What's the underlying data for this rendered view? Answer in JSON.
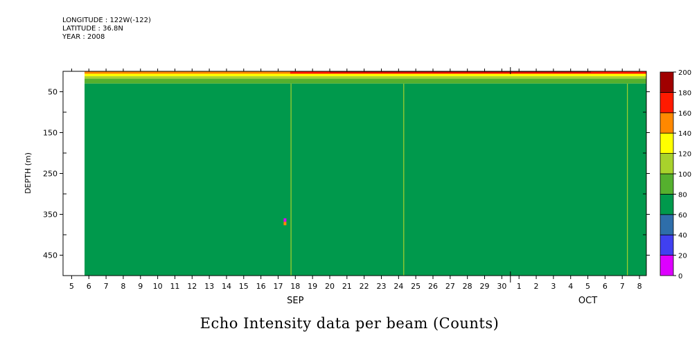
{
  "meta": {
    "longitude": "LONGITUDE : 122W(-122)",
    "latitude": "LATITUDE : 36.8N",
    "year": "YEAR : 2008"
  },
  "chart_data": {
    "type": "heatmap",
    "title": "Echo Intensity data per beam (Counts)",
    "ylabel": "DEPTH (m)",
    "xlabel": "",
    "y_axis": {
      "range": [
        500,
        0
      ],
      "inverted": true,
      "tick_labels": [
        "50",
        "150",
        "250",
        "350",
        "450"
      ],
      "tick_values": [
        50,
        150,
        250,
        350,
        450
      ],
      "minor_ticks": [
        100,
        200,
        300,
        400
      ]
    },
    "x_axis": {
      "day_labels": [
        "5",
        "6",
        "7",
        "8",
        "9",
        "10",
        "11",
        "12",
        "13",
        "14",
        "15",
        "16",
        "17",
        "18",
        "19",
        "20",
        "21",
        "22",
        "23",
        "24",
        "25",
        "26",
        "27",
        "28",
        "29",
        "30",
        "1",
        "2",
        "3",
        "4",
        "5",
        "6",
        "7",
        "8"
      ],
      "month_labels": [
        {
          "text": "SEP",
          "at_day_index": 13
        },
        {
          "text": "OCT",
          "at_day_index": 30
        }
      ],
      "range_days": [
        4.5,
        38.4
      ],
      "data_start_day": 5.75
    },
    "colorbar": {
      "levels": [
        0,
        20,
        40,
        60,
        80,
        100,
        120,
        140,
        160,
        180,
        200
      ],
      "labels": [
        "0",
        "20",
        "40",
        "60",
        "80",
        "100",
        "120",
        "140",
        "160",
        "180",
        "200"
      ],
      "colors": [
        "#dd00ff",
        "#4040f0",
        "#2e6eaa",
        "#00994c",
        "#55b02e",
        "#a8d22c",
        "#ffff00",
        "#ff8800",
        "#ff1a00",
        "#a00000"
      ]
    },
    "profile": {
      "description_layers": [
        {
          "from_depth": 0,
          "to_depth": 6,
          "level_index": 7
        },
        {
          "from_depth": 6,
          "to_depth": 12,
          "level_index": 6
        },
        {
          "from_depth": 12,
          "to_depth": 18,
          "level_index": 5
        },
        {
          "from_depth": 18,
          "to_depth": 30,
          "level_index": 4
        },
        {
          "from_depth": 30,
          "to_depth": 500,
          "level_index": 3
        }
      ],
      "surface_red_from_day": 17.7,
      "surface_darkred_from_day": 20.0,
      "thin_lines_days": [
        17.75,
        24.3,
        37.3
      ],
      "anomaly": {
        "day": 17.4,
        "depth": 370
      }
    }
  }
}
